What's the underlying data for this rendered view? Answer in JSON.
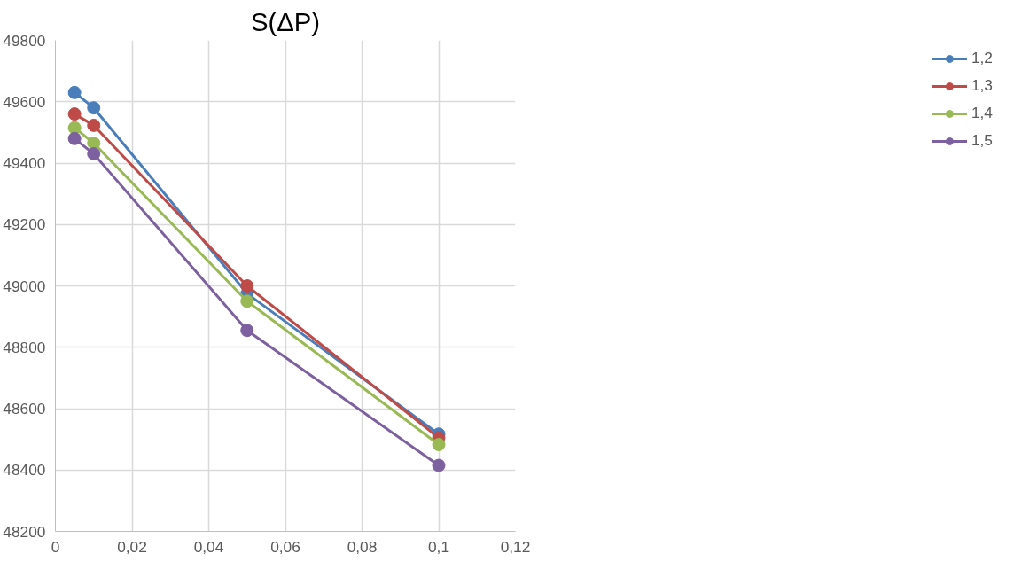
{
  "chart_data": {
    "type": "line",
    "title": "S(ΔP)",
    "x": [
      0.005,
      0.01,
      0.05,
      0.1
    ],
    "series": [
      {
        "name": "1,2",
        "color": "#4a7ebb",
        "values": [
          49630,
          49580,
          48975,
          48517
        ]
      },
      {
        "name": "1,3",
        "color": "#be4b48",
        "values": [
          49560,
          49523,
          49000,
          48505
        ]
      },
      {
        "name": "1,4",
        "color": "#98b954",
        "values": [
          49515,
          49465,
          48950,
          48483
        ]
      },
      {
        "name": "1,5",
        "color": "#7d60a0",
        "values": [
          49480,
          49430,
          48855,
          48415
        ]
      }
    ],
    "xlim": [
      0,
      0.12
    ],
    "ylim": [
      48200,
      49800
    ],
    "xticks": [
      0,
      {
        "value": 0.02,
        "label": "0,02"
      },
      {
        "value": 0.04,
        "label": "0,04"
      },
      {
        "value": 0.06,
        "label": "0,06"
      },
      {
        "value": 0.08,
        "label": "0,08"
      },
      {
        "value": 0.1,
        "label": "0,1"
      },
      {
        "value": 0.12,
        "label": "0,12"
      }
    ],
    "yticks": [
      48200,
      48400,
      48600,
      48800,
      49000,
      49200,
      49400,
      49600,
      49800
    ],
    "grid": true,
    "legend": "right",
    "marker": "circle",
    "line_style": "solid"
  }
}
